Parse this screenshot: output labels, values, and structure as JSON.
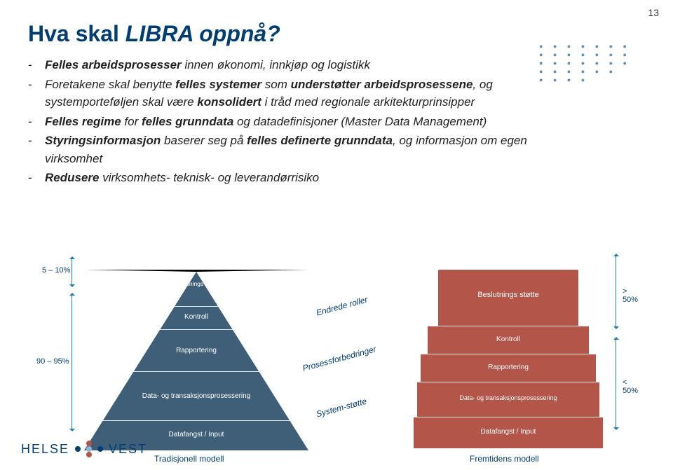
{
  "page_number": "13",
  "title_prefix": "Hva skal ",
  "title_italic": "LIBRA",
  "title_suffix": " oppnå?",
  "bullets": [
    "<b>Felles  arbeidsprosesser</b> innen økonomi, innkjøp og logistikk",
    "Foretakene skal benytte <b>felles systemer</b> som <b>understøtter arbeidsprosessene</b>, og systemporteføljen skal være <b>konsolidert</b> i tråd med regionale arkitekturprinsipper",
    "<b>Felles regime</b> for <b>felles grunndata</b> og datadefinisjoner  (Master Data Management)",
    "<b>Styringsinformasjon</b> baserer seg på <b>felles definerte grunndata</b>, og informasjon om egen virksomhet",
    "<b>Redusere</b> virksomhets- teknisk- og leverandørrisiko"
  ],
  "colors": {
    "tri_left": "#3f5f78",
    "tri_right": "#b35549",
    "title": "#003d73"
  },
  "pct": {
    "left_top": "5 – 10%",
    "left_bottom": "90 – 95%",
    "right_top": "> 50%",
    "right_bottom": "< 50%"
  },
  "left_tri_bands": [
    "Beslut­nings støtte",
    "Kontroll",
    "Rapportering",
    "Data- og transaksjonsprosessering",
    "Datafangst / Input"
  ],
  "right_tri_bands": [
    "Beslutnings støtte",
    "Kontroll",
    "Rapportering",
    "Data- og transaksjonsprosessering",
    "Datafangst / Input"
  ],
  "middle_labels": [
    "Endrede roller",
    "Prosessforbedringer",
    "System-støtte"
  ],
  "model_left": "Tradisjonell modell",
  "model_right": "Fremtidens modell",
  "logo_left": "HELSE",
  "logo_right": "VEST",
  "logo_dot_colors": [
    "#b35549",
    "#003d73",
    "#8ab4d0",
    "#003d73",
    "#b35549"
  ]
}
